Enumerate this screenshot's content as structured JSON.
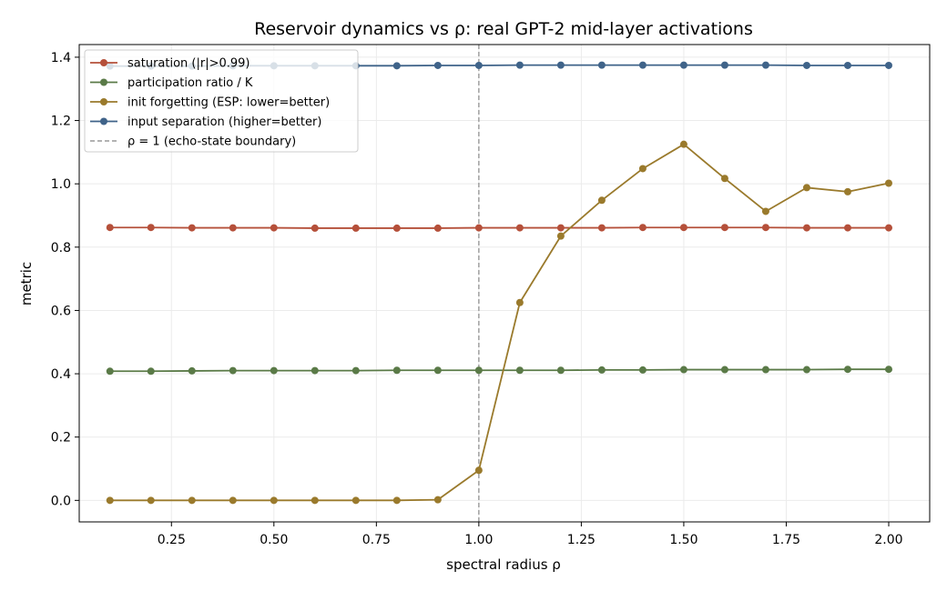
{
  "chart_data": {
    "type": "line",
    "title": "Reservoir dynamics vs ρ: real GPT-2 mid-layer activations",
    "xlabel": "spectral radius ρ",
    "ylabel": "metric",
    "xlim": [
      0.025,
      2.1
    ],
    "ylim": [
      -0.068,
      1.44
    ],
    "xticks": [
      "0.25",
      "0.50",
      "0.75",
      "1.00",
      "1.25",
      "1.50",
      "1.75",
      "2.00"
    ],
    "yticks": [
      "0.0",
      "0.2",
      "0.4",
      "0.6",
      "0.8",
      "1.0",
      "1.2",
      "1.4"
    ],
    "grid": true,
    "legend_position": "top-left",
    "x": [
      0.1,
      0.2,
      0.3,
      0.4,
      0.5,
      0.6,
      0.7,
      0.8,
      0.9,
      1.0,
      1.1,
      1.2,
      1.3,
      1.4,
      1.5,
      1.6,
      1.7,
      1.8,
      1.9,
      2.0
    ],
    "series": [
      {
        "name": "saturation (|r|>0.99)",
        "color": "#b5503a",
        "values": [
          0.862,
          0.862,
          0.861,
          0.861,
          0.861,
          0.86,
          0.86,
          0.86,
          0.86,
          0.861,
          0.861,
          0.861,
          0.861,
          0.862,
          0.862,
          0.862,
          0.862,
          0.861,
          0.861,
          0.861
        ]
      },
      {
        "name": "participation ratio / K",
        "color": "#5a7a47",
        "values": [
          0.408,
          0.408,
          0.409,
          0.41,
          0.41,
          0.41,
          0.41,
          0.411,
          0.411,
          0.411,
          0.411,
          0.411,
          0.412,
          0.412,
          0.413,
          0.413,
          0.413,
          0.413,
          0.414,
          0.414
        ]
      },
      {
        "name": "init forgetting (ESP: lower=better)",
        "color": "#9a7a2c",
        "values": [
          0.0,
          0.0,
          0.0,
          0.0,
          0.0,
          0.0,
          0.0,
          0.0,
          0.002,
          0.095,
          0.625,
          0.835,
          0.948,
          1.048,
          1.125,
          1.017,
          0.913,
          0.988,
          0.975,
          1.002
        ]
      },
      {
        "name": "input separation (higher=better)",
        "color": "#3f6389",
        "values": [
          1.372,
          1.372,
          1.372,
          1.373,
          1.373,
          1.373,
          1.373,
          1.373,
          1.374,
          1.374,
          1.375,
          1.375,
          1.375,
          1.375,
          1.375,
          1.375,
          1.375,
          1.374,
          1.374,
          1.374
        ]
      }
    ],
    "reference_line": {
      "name": "ρ = 1 (echo-state boundary)",
      "x": 1.0,
      "color": "#999999"
    }
  }
}
